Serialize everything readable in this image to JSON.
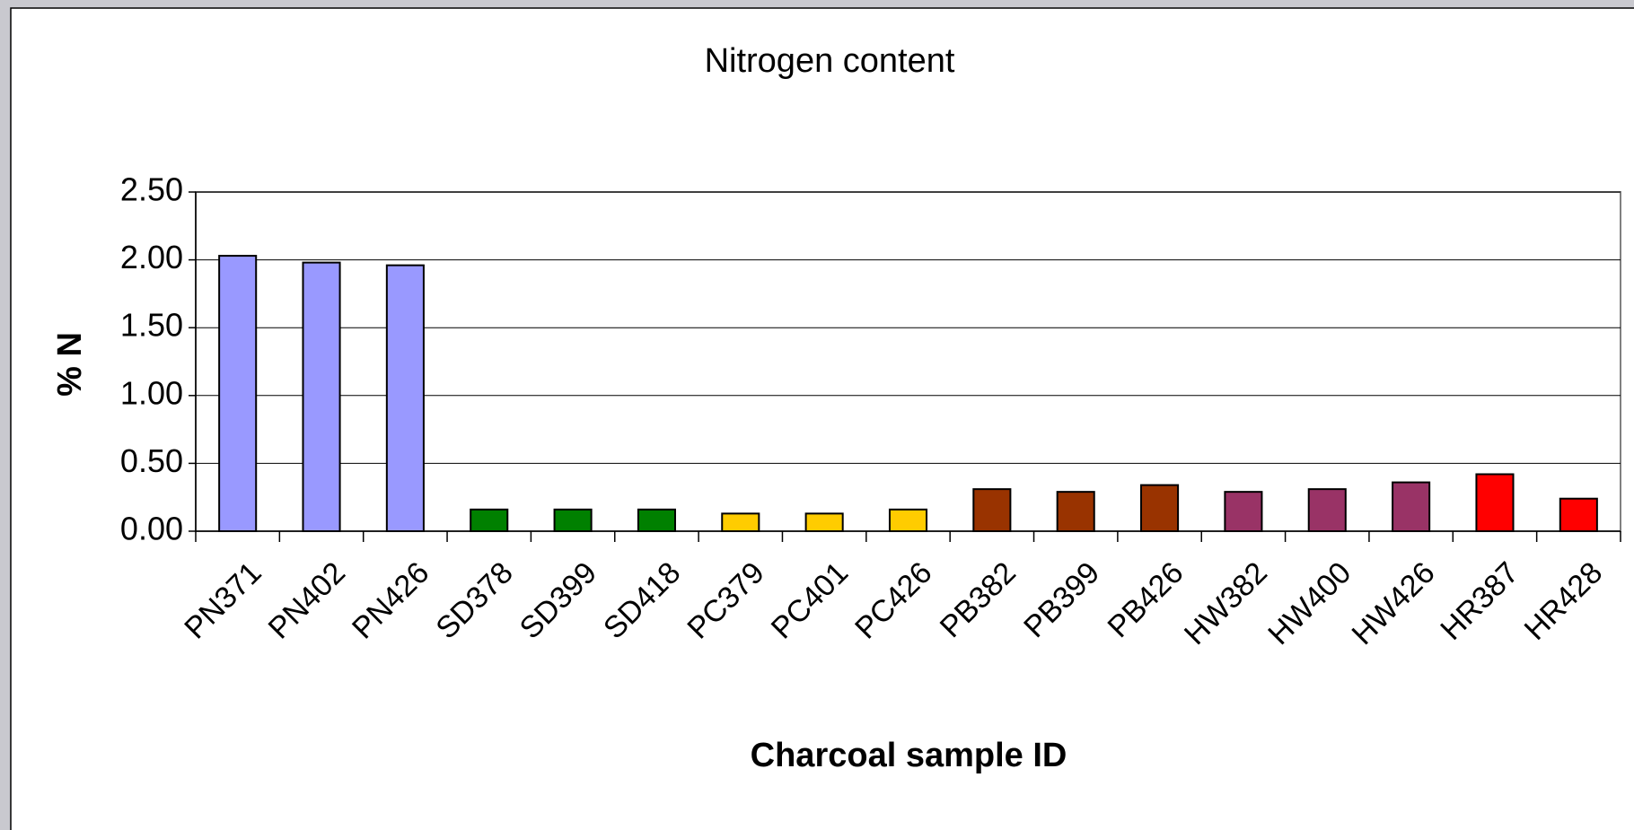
{
  "chart_data": {
    "type": "bar",
    "title": "Nitrogen content",
    "xlabel": "Charcoal sample ID",
    "ylabel": "% N",
    "categories": [
      "PN371",
      "PN402",
      "PN426",
      "SD378",
      "SD399",
      "SD418",
      "PC379",
      "PC401",
      "PC426",
      "PB382",
      "PB399",
      "PB426",
      "HW382",
      "HW400",
      "HW426",
      "HR387",
      "HR428"
    ],
    "values": [
      2.03,
      1.98,
      1.96,
      0.16,
      0.16,
      0.16,
      0.13,
      0.13,
      0.16,
      0.31,
      0.29,
      0.34,
      0.29,
      0.31,
      0.36,
      0.42,
      0.24
    ],
    "colors": [
      "#9999ff",
      "#9999ff",
      "#9999ff",
      "#008000",
      "#008000",
      "#008000",
      "#ffcc00",
      "#ffcc00",
      "#ffcc00",
      "#993300",
      "#993300",
      "#993300",
      "#993366",
      "#993366",
      "#993366",
      "#ff0000",
      "#ff0000"
    ],
    "ylim": [
      0,
      2.5
    ],
    "yticks": [
      {
        "value": 0,
        "label": "0.00"
      },
      {
        "value": 0.5,
        "label": "0.50"
      },
      {
        "value": 1,
        "label": "1.00"
      },
      {
        "value": 1.5,
        "label": "1.50"
      },
      {
        "value": 2,
        "label": "2.00"
      },
      {
        "value": 2.5,
        "label": "2.50"
      }
    ],
    "grid": true
  }
}
